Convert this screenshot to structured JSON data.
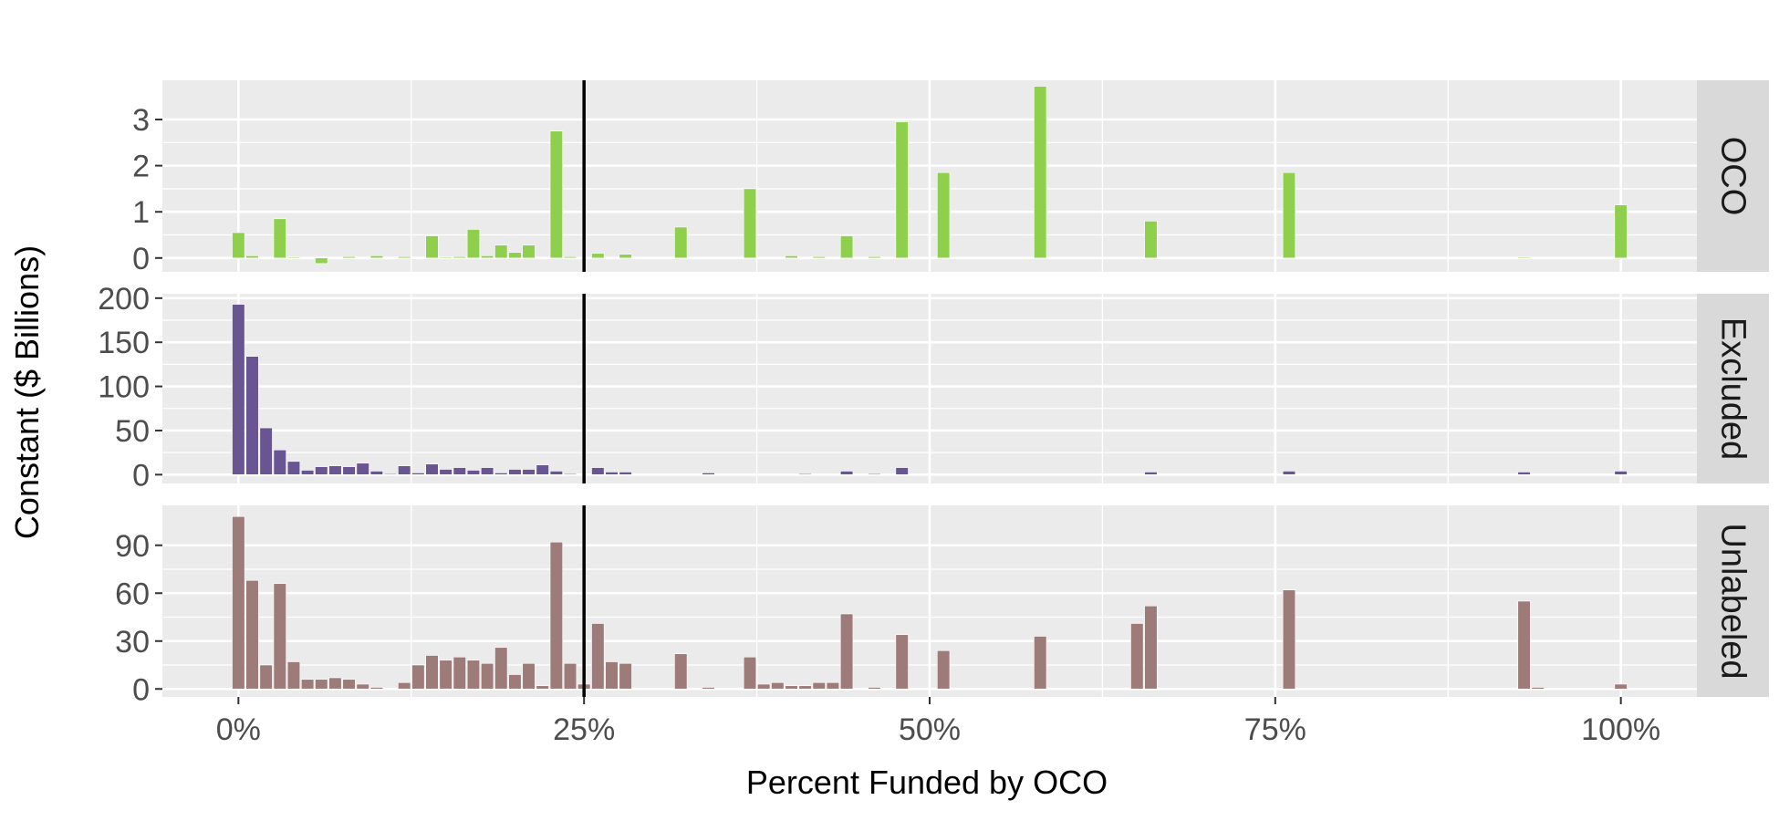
{
  "chart_data": {
    "type": "bar",
    "xlabel": "Percent Funded by OCO",
    "ylabel": "Constant ($ Billions)",
    "x_ticks": [
      0,
      25,
      50,
      75,
      100
    ],
    "x_tick_labels": [
      "0%",
      "25%",
      "50%",
      "75%",
      "100%"
    ],
    "xlim": [
      -5.5,
      105.5
    ],
    "bin_width": 0.9,
    "reference_line_x": 25,
    "panels": [
      {
        "name": "OCO",
        "color": "#8ecf4c",
        "ylim": [
          -0.3,
          3.85
        ],
        "y_ticks": [
          0,
          1,
          2,
          3
        ],
        "y_tick_labels": [
          "0",
          "1",
          "2",
          "3"
        ],
        "x": [
          0,
          1,
          3,
          4,
          6,
          8,
          10,
          12,
          14,
          15,
          16,
          17,
          18,
          19,
          20,
          21,
          23,
          24,
          26,
          28,
          32,
          37,
          40,
          42,
          44,
          46,
          48,
          51,
          58,
          66,
          76,
          93,
          100
        ],
        "values": [
          0.55,
          0.05,
          0.85,
          0.02,
          -0.12,
          0.03,
          0.05,
          0.03,
          0.48,
          0.02,
          0.03,
          0.62,
          0.05,
          0.28,
          0.12,
          0.28,
          2.75,
          0.03,
          0.1,
          0.08,
          0.67,
          1.5,
          0.05,
          0.03,
          0.48,
          0.03,
          2.95,
          1.85,
          3.72,
          0.8,
          1.85,
          0.02,
          1.15
        ]
      },
      {
        "name": "Excluded",
        "color": "#6a5593",
        "ylim": [
          -10,
          205
        ],
        "y_ticks": [
          0,
          50,
          100,
          150,
          200
        ],
        "y_tick_labels": [
          "0",
          "50",
          "100",
          "150",
          "200"
        ],
        "x": [
          0,
          1,
          2,
          3,
          4,
          5,
          6,
          7,
          8,
          9,
          10,
          11,
          12,
          13,
          14,
          15,
          16,
          17,
          18,
          19,
          20,
          21,
          22,
          23,
          24,
          26,
          27,
          28,
          34,
          41,
          44,
          46,
          48,
          66,
          76,
          93,
          100
        ],
        "values": [
          193,
          134,
          53,
          28,
          15,
          5,
          9,
          10,
          9,
          13,
          4,
          1,
          10,
          2,
          12,
          6,
          8,
          5,
          8,
          2,
          6,
          6,
          11,
          4,
          1,
          8,
          3,
          3,
          2,
          1,
          4,
          1,
          8,
          3,
          4,
          3,
          4
        ]
      },
      {
        "name": "Unlabeled",
        "color": "#9c7b78",
        "ylim": [
          -5,
          115
        ],
        "y_ticks": [
          0,
          30,
          60,
          90
        ],
        "y_tick_labels": [
          "0",
          "30",
          "60",
          "90"
        ],
        "x": [
          0,
          1,
          2,
          3,
          4,
          5,
          6,
          7,
          8,
          9,
          10,
          12,
          13,
          14,
          15,
          16,
          17,
          18,
          19,
          20,
          21,
          22,
          23,
          24,
          25,
          26,
          27,
          28,
          32,
          34,
          37,
          38,
          39,
          40,
          41,
          42,
          43,
          44,
          46,
          48,
          51,
          58,
          65,
          66,
          76,
          93,
          94,
          100
        ],
        "values": [
          108,
          68,
          15,
          66,
          17,
          6,
          6,
          7,
          6,
          3,
          1,
          4,
          15,
          21,
          18,
          20,
          18,
          16,
          26,
          9,
          16,
          2,
          92,
          16,
          3,
          41,
          17,
          16,
          22,
          1,
          20,
          3,
          4,
          2,
          2,
          4,
          4,
          47,
          1,
          34,
          24,
          33,
          41,
          52,
          62,
          55,
          1,
          3
        ]
      }
    ]
  }
}
